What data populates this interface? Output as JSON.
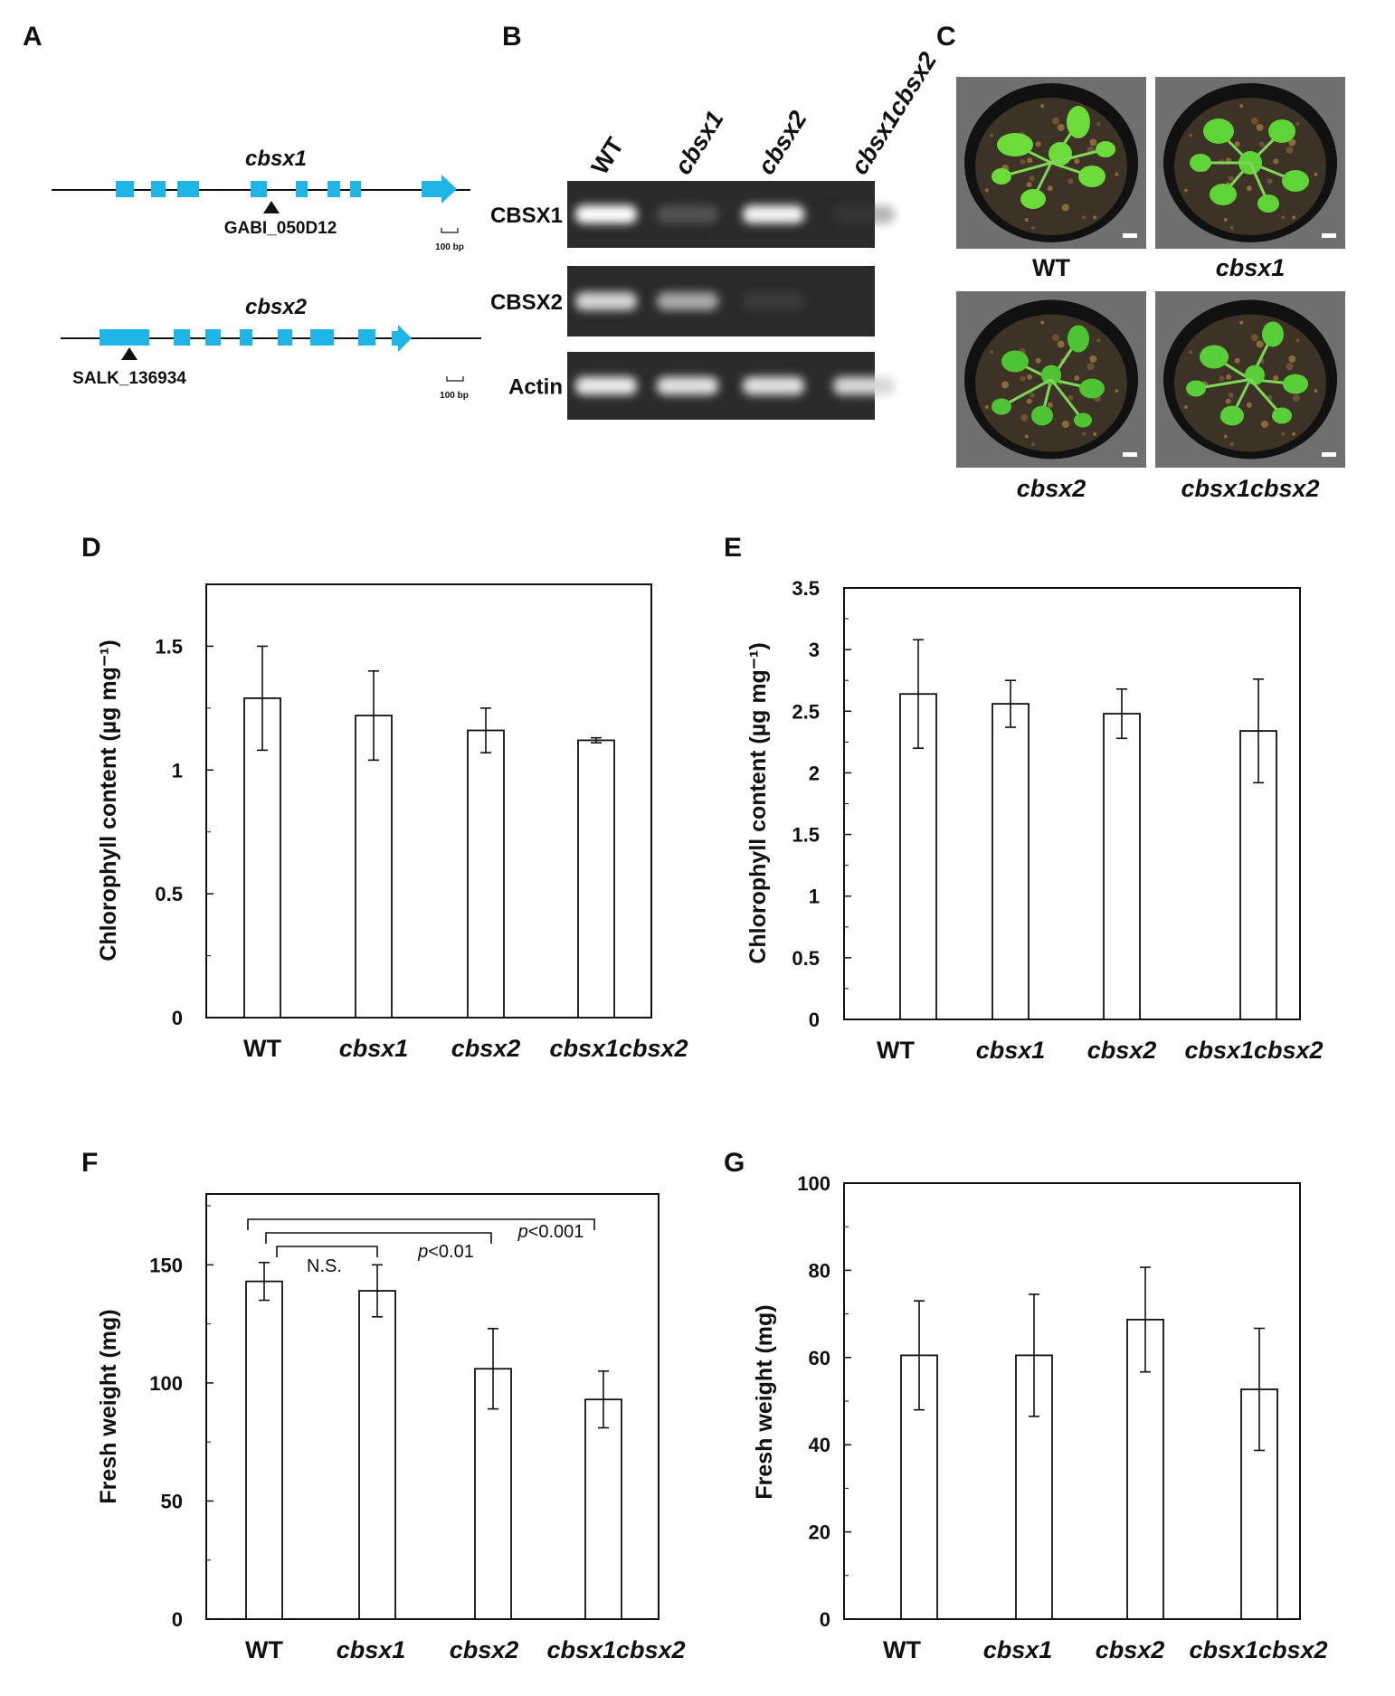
{
  "panel_letters": [
    "A",
    "B",
    "C",
    "D",
    "E",
    "F",
    "G"
  ],
  "panel_a": {
    "genes": [
      {
        "name": "cbsx1",
        "insertion": "GABI_050D12",
        "scale": "100 bp"
      },
      {
        "name": "cbsx2",
        "insertion": "SALK_136934",
        "scale": "100 bp"
      }
    ],
    "colors": {
      "exon": "#1eb4e6",
      "line": "#111111"
    }
  },
  "panel_b": {
    "lanes": [
      "WT",
      "cbsx1",
      "cbsx2",
      "cbsx1cbsx2"
    ],
    "rows": [
      {
        "label": "CBSX1",
        "intensity": [
          1.0,
          0.25,
          0.95,
          0.05
        ]
      },
      {
        "label": "CBSX2",
        "intensity": [
          0.8,
          0.6,
          0.1,
          0.0
        ]
      },
      {
        "label": "Actin",
        "intensity": [
          0.9,
          0.85,
          0.85,
          0.8
        ]
      }
    ]
  },
  "panel_c": {
    "plants": [
      "WT",
      "cbsx1",
      "cbsx2",
      "cbsx1cbsx2"
    ]
  },
  "chart_data": [
    {
      "panel": "D",
      "type": "bar",
      "categories": [
        "WT",
        "cbsx1",
        "cbsx2",
        "cbsx1cbsx2"
      ],
      "values": [
        1.29,
        1.22,
        1.16,
        1.12
      ],
      "errors": [
        0.21,
        0.18,
        0.09,
        0.01
      ],
      "ylabel": "Chlorophyll content (µg mg⁻¹)",
      "yticks": [
        "0",
        "0.5",
        "1",
        "1.5"
      ],
      "ylim": [
        0,
        1.75
      ],
      "grid": false
    },
    {
      "panel": "E",
      "type": "bar",
      "categories": [
        "WT",
        "cbsx1",
        "cbsx2",
        "cbsx1cbsx2"
      ],
      "values": [
        2.64,
        2.56,
        2.48,
        2.34
      ],
      "errors": [
        0.44,
        0.19,
        0.2,
        0.42
      ],
      "ylabel": "Chlorophyll content (µg mg⁻¹)",
      "yticks": [
        "0",
        "0.5",
        "1",
        "1.5",
        "2",
        "2.5",
        "3",
        "3.5"
      ],
      "ylim": [
        0,
        3.5
      ],
      "grid": false
    },
    {
      "panel": "F",
      "type": "bar",
      "categories": [
        "WT",
        "cbsx1",
        "cbsx2",
        "cbsx1cbsx2"
      ],
      "values": [
        143,
        139,
        106,
        93
      ],
      "errors": [
        8,
        11,
        17,
        12
      ],
      "ylabel": "Fresh weight (mg)",
      "yticks": [
        "0",
        "50",
        "100",
        "150"
      ],
      "ylim": [
        0,
        180
      ],
      "grid": false,
      "significance": [
        {
          "from": 0,
          "to": 1,
          "label": "N.S."
        },
        {
          "from": 0,
          "to": 2,
          "label": "p<0.01"
        },
        {
          "from": 0,
          "to": 3,
          "label": "p<0.001"
        }
      ]
    },
    {
      "panel": "G",
      "type": "bar",
      "categories": [
        "WT",
        "cbsx1",
        "cbsx2",
        "cbsx1cbsx2"
      ],
      "values": [
        60.5,
        60.5,
        68.7,
        52.7
      ],
      "errors": [
        12.5,
        14,
        12,
        14
      ],
      "ylabel": "Fresh weight (mg)",
      "yticks": [
        "0",
        "20",
        "40",
        "60",
        "80",
        "100"
      ],
      "ylim": [
        0,
        100
      ],
      "grid": false
    }
  ]
}
